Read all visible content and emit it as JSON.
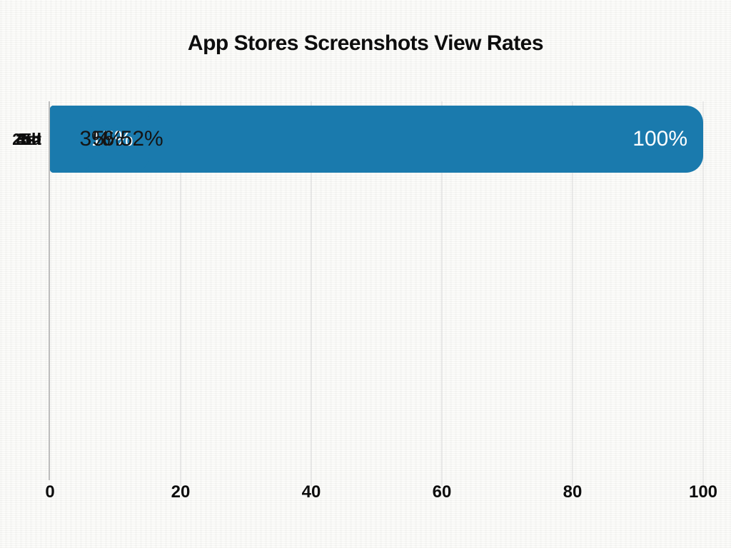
{
  "title": "App Stores Screenshots View Rates",
  "chart_data": {
    "type": "bar",
    "orientation": "horizontal",
    "title": "App Stores Screenshots View Rates",
    "categories": [
      "1st",
      "2nd",
      "3rd",
      "4th",
      "5>"
    ],
    "values": [
      100,
      15.15,
      6.52,
      5,
      3
    ],
    "value_labels": [
      "100%",
      "15.15%",
      "6.52%",
      "5%",
      "3%"
    ],
    "value_label_positions": [
      "inside",
      "inside",
      "outside",
      "outside",
      "outside"
    ],
    "xlabel": "",
    "ylabel": "",
    "xlim": [
      0,
      100
    ],
    "xticks": [
      0,
      20,
      40,
      60,
      80,
      100
    ],
    "xtick_labels": [
      "0",
      "20",
      "40",
      "60",
      "80",
      "100"
    ],
    "grid": "vertical-gridlines",
    "legend": "none",
    "colors": {
      "bar": "#1a7aad",
      "inside_value_label": "#ffffff",
      "outside_value_label": "#141414",
      "axis_line": "#bdbdbd",
      "gridline": "#d8d8d8",
      "text": "#0d0d0d",
      "background": "#fcfcfa"
    }
  }
}
